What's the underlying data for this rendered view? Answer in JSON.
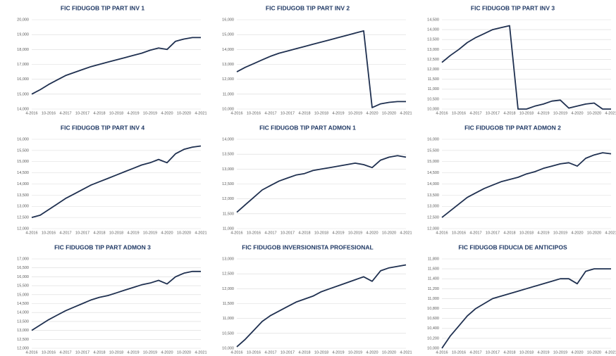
{
  "chart_data": [
    {
      "type": "line",
      "title": "FIC FIDUGOB TIP PART INV 1",
      "color": "#1f3050",
      "categories": [
        "4-2016",
        null,
        "10-2016",
        null,
        "4-2017",
        null,
        "10-2017",
        null,
        "4-2018",
        null,
        "10-2018",
        null,
        "4-2019",
        null,
        "10-2019",
        null,
        "4-2020",
        null,
        "10-2020",
        null,
        "4-2021"
      ],
      "values": [
        15000,
        15300,
        15650,
        15950,
        16250,
        16450,
        16650,
        16850,
        17000,
        17150,
        17300,
        17450,
        17600,
        17750,
        17950,
        18100,
        18000,
        18550,
        18700,
        18800,
        18800
      ],
      "ylim": [
        14000,
        20000
      ],
      "yticks": [
        {
          "value": 14000,
          "label": "14,000"
        },
        {
          "value": 15000,
          "label": "15,000"
        },
        {
          "value": 16000,
          "label": "16,000"
        },
        {
          "value": 17000,
          "label": "17,000"
        },
        {
          "value": 18000,
          "label": "18,000"
        },
        {
          "value": 19000,
          "label": "19,000"
        },
        {
          "value": 20000,
          "label": "20,000"
        }
      ],
      "grid": true
    },
    {
      "type": "line",
      "title": "FIC FIDUGOB TIP PART INV 2",
      "color": "#1f3050",
      "categories": [
        "4-2016",
        null,
        "10-2016",
        null,
        "4-2017",
        null,
        "10-2017",
        null,
        "4-2018",
        null,
        "10-2018",
        null,
        "4-2019",
        null,
        "10-2019",
        null,
        "4-2020",
        null,
        "10-2020",
        null,
        "4-2021"
      ],
      "values": [
        12500,
        12800,
        13050,
        13300,
        13550,
        13750,
        13900,
        14050,
        14200,
        14350,
        14500,
        14650,
        14800,
        14950,
        15100,
        15250,
        10100,
        10350,
        10450,
        10500,
        10500
      ],
      "ylim": [
        10000,
        16000
      ],
      "yticks": [
        {
          "value": 10000,
          "label": "10,000"
        },
        {
          "value": 11000,
          "label": "11,000"
        },
        {
          "value": 12000,
          "label": "12,000"
        },
        {
          "value": 13000,
          "label": "13,000"
        },
        {
          "value": 14000,
          "label": "14,000"
        },
        {
          "value": 15000,
          "label": "15,000"
        },
        {
          "value": 16000,
          "label": "16,000"
        }
      ],
      "grid": true
    },
    {
      "type": "line",
      "title": "FIC FIDUGOB TIP PART INV 3",
      "color": "#1f3050",
      "categories": [
        "4-2016",
        null,
        "10-2016",
        null,
        "4-2017",
        null,
        "10-2017",
        null,
        "4-2018",
        null,
        "10-2018",
        null,
        "4-2019",
        null,
        "10-2019",
        null,
        "4-2020",
        null,
        "10-2020",
        null,
        "4-2021"
      ],
      "values": [
        12350,
        12700,
        13000,
        13350,
        13600,
        13800,
        14000,
        14100,
        14200,
        10000,
        10000,
        10150,
        10250,
        10400,
        10450,
        10050,
        10150,
        10250,
        10300,
        10000,
        10000
      ],
      "ylim": [
        10000,
        14500
      ],
      "yticks": [
        {
          "value": 10000,
          "label": "10,000"
        },
        {
          "value": 10500,
          "label": "10,500"
        },
        {
          "value": 11000,
          "label": "11,000"
        },
        {
          "value": 11500,
          "label": "11,500"
        },
        {
          "value": 12000,
          "label": "12,000"
        },
        {
          "value": 12500,
          "label": "12,500"
        },
        {
          "value": 13000,
          "label": "13,000"
        },
        {
          "value": 13500,
          "label": "13,500"
        },
        {
          "value": 14000,
          "label": "14,000"
        },
        {
          "value": 14500,
          "label": "14,500"
        }
      ],
      "grid": true
    },
    {
      "type": "line",
      "title": "FIC FIDUGOB TIP PART INV 4",
      "color": "#1f3050",
      "categories": [
        "4-2016",
        null,
        "10-2016",
        null,
        "4-2017",
        null,
        "10-2017",
        null,
        "4-2018",
        null,
        "10-2018",
        null,
        "4-2019",
        null,
        "10-2019",
        null,
        "4-2020",
        null,
        "10-2020",
        null,
        "4-2021"
      ],
      "values": [
        12500,
        12600,
        12850,
        13100,
        13350,
        13550,
        13750,
        13950,
        14100,
        14250,
        14400,
        14550,
        14700,
        14850,
        14950,
        15100,
        14950,
        15350,
        15550,
        15650,
        15700
      ],
      "ylim": [
        12000,
        16000
      ],
      "yticks": [
        {
          "value": 12000,
          "label": "12,000"
        },
        {
          "value": 12500,
          "label": "12,500"
        },
        {
          "value": 13000,
          "label": "13,000"
        },
        {
          "value": 13500,
          "label": "13,500"
        },
        {
          "value": 14000,
          "label": "14,000"
        },
        {
          "value": 14500,
          "label": "14,500"
        },
        {
          "value": 15000,
          "label": "15,000"
        },
        {
          "value": 15500,
          "label": "15,500"
        },
        {
          "value": 16000,
          "label": "16,000"
        }
      ],
      "grid": true
    },
    {
      "type": "line",
      "title": "FIC FIDUGOB TIP PART ADMON 1",
      "color": "#1f3050",
      "categories": [
        "4-2016",
        null,
        "10-2016",
        null,
        "4-2017",
        null,
        "10-2017",
        null,
        "4-2018",
        null,
        "10-2018",
        null,
        "4-2019",
        null,
        "10-2019",
        null,
        "4-2020",
        null,
        "10-2020",
        null,
        "4-2021"
      ],
      "values": [
        11550,
        11800,
        12050,
        12300,
        12450,
        12600,
        12700,
        12800,
        12850,
        12950,
        13000,
        13050,
        13100,
        13150,
        13200,
        13150,
        13050,
        13300,
        13400,
        13450,
        13400
      ],
      "ylim": [
        11000,
        14000
      ],
      "yticks": [
        {
          "value": 11000,
          "label": "11,000"
        },
        {
          "value": 11500,
          "label": "11,500"
        },
        {
          "value": 12000,
          "label": "12,000"
        },
        {
          "value": 12500,
          "label": "12,500"
        },
        {
          "value": 13000,
          "label": "13,000"
        },
        {
          "value": 13500,
          "label": "13,500"
        },
        {
          "value": 14000,
          "label": "14,000"
        }
      ],
      "grid": true
    },
    {
      "type": "line",
      "title": "FIC FIDUGOB TIP PART ADMON 2",
      "color": "#1f3050",
      "categories": [
        "4-2016",
        null,
        "10-2016",
        null,
        "4-2017",
        null,
        "10-2017",
        null,
        "4-2018",
        null,
        "10-2018",
        null,
        "4-2019",
        null,
        "10-2019",
        null,
        "4-2020",
        null,
        "10-2020",
        null,
        "4-2021"
      ],
      "values": [
        12500,
        12800,
        13100,
        13400,
        13600,
        13800,
        13950,
        14100,
        14200,
        14300,
        14450,
        14550,
        14700,
        14800,
        14900,
        14950,
        14800,
        15150,
        15300,
        15400,
        15350
      ],
      "ylim": [
        12000,
        16000
      ],
      "yticks": [
        {
          "value": 12000,
          "label": "12,000"
        },
        {
          "value": 12500,
          "label": "12,500"
        },
        {
          "value": 13000,
          "label": "13,000"
        },
        {
          "value": 13500,
          "label": "13,500"
        },
        {
          "value": 14000,
          "label": "14,000"
        },
        {
          "value": 14500,
          "label": "14,500"
        },
        {
          "value": 15000,
          "label": "15,000"
        },
        {
          "value": 15500,
          "label": "15,500"
        },
        {
          "value": 16000,
          "label": "16,000"
        }
      ],
      "grid": true
    },
    {
      "type": "line",
      "title": "FIC FIDUGOB TIP PART ADMON 3",
      "color": "#1f3050",
      "categories": [
        "4-2016",
        null,
        "10-2016",
        null,
        "4-2017",
        null,
        "10-2017",
        null,
        "4-2018",
        null,
        "10-2018",
        null,
        "4-2019",
        null,
        "10-2019",
        null,
        "4-2020",
        null,
        "10-2020",
        null,
        "4-2021"
      ],
      "values": [
        13000,
        13300,
        13600,
        13850,
        14100,
        14300,
        14500,
        14700,
        14850,
        14950,
        15100,
        15250,
        15400,
        15550,
        15650,
        15800,
        15600,
        16000,
        16200,
        16300,
        16300
      ],
      "ylim": [
        12000,
        17000
      ],
      "yticks": [
        {
          "value": 12000,
          "label": "12,000"
        },
        {
          "value": 12500,
          "label": "12,500"
        },
        {
          "value": 13000,
          "label": "13,000"
        },
        {
          "value": 13500,
          "label": "13,500"
        },
        {
          "value": 14000,
          "label": "14,000"
        },
        {
          "value": 14500,
          "label": "14,500"
        },
        {
          "value": 15000,
          "label": "15,000"
        },
        {
          "value": 15500,
          "label": "15,500"
        },
        {
          "value": 16000,
          "label": "16,000"
        },
        {
          "value": 16500,
          "label": "16,500"
        },
        {
          "value": 17000,
          "label": "17,000"
        }
      ],
      "grid": true
    },
    {
      "type": "line",
      "title": "FIC FIDUGOB INVERSIONISTA PROFESIONAL",
      "color": "#1f3050",
      "categories": [
        "4-2016",
        null,
        "10-2016",
        null,
        "4-2017",
        null,
        "10-2017",
        null,
        "4-2018",
        null,
        "10-2018",
        null,
        "4-2019",
        null,
        "10-2019",
        null,
        "4-2020",
        null,
        "10-2020",
        null,
        "4-2021"
      ],
      "values": [
        10050,
        10300,
        10600,
        10900,
        11100,
        11250,
        11400,
        11550,
        11650,
        11750,
        11900,
        12000,
        12100,
        12200,
        12300,
        12400,
        12250,
        12600,
        12700,
        12750,
        12800
      ],
      "ylim": [
        10000,
        13000
      ],
      "yticks": [
        {
          "value": 10000,
          "label": "10,000"
        },
        {
          "value": 10500,
          "label": "10,500"
        },
        {
          "value": 11000,
          "label": "11,000"
        },
        {
          "value": 11500,
          "label": "11,500"
        },
        {
          "value": 12000,
          "label": "12,000"
        },
        {
          "value": 12500,
          "label": "12,500"
        },
        {
          "value": 13000,
          "label": "13,000"
        }
      ],
      "grid": true
    },
    {
      "type": "line",
      "title": "FIC FIDUGOB FIDUCIA DE ANTICIPOS",
      "color": "#1f3050",
      "categories": [
        "4-2016",
        null,
        "10-2016",
        null,
        "4-2017",
        null,
        "10-2017",
        null,
        "4-2018",
        null,
        "10-2018",
        null,
        "4-2019",
        null,
        "10-2019",
        null,
        "4-2020",
        null,
        "10-2020",
        null,
        "4-2021"
      ],
      "values": [
        10000,
        10250,
        10450,
        10650,
        10800,
        10900,
        11000,
        11050,
        11100,
        11150,
        11200,
        11250,
        11300,
        11350,
        11400,
        11400,
        11300,
        11550,
        11600,
        11600,
        11600
      ],
      "ylim": [
        10000,
        11800
      ],
      "yticks": [
        {
          "value": 10000,
          "label": "10,000"
        },
        {
          "value": 10200,
          "label": "10,200"
        },
        {
          "value": 10400,
          "label": "10,400"
        },
        {
          "value": 10600,
          "label": "10,600"
        },
        {
          "value": 10800,
          "label": "10,800"
        },
        {
          "value": 11000,
          "label": "11,000"
        },
        {
          "value": 11200,
          "label": "11,200"
        },
        {
          "value": 11400,
          "label": "11,400"
        },
        {
          "value": 11600,
          "label": "11,600"
        },
        {
          "value": 11800,
          "label": "11,800"
        }
      ],
      "grid": true
    }
  ]
}
